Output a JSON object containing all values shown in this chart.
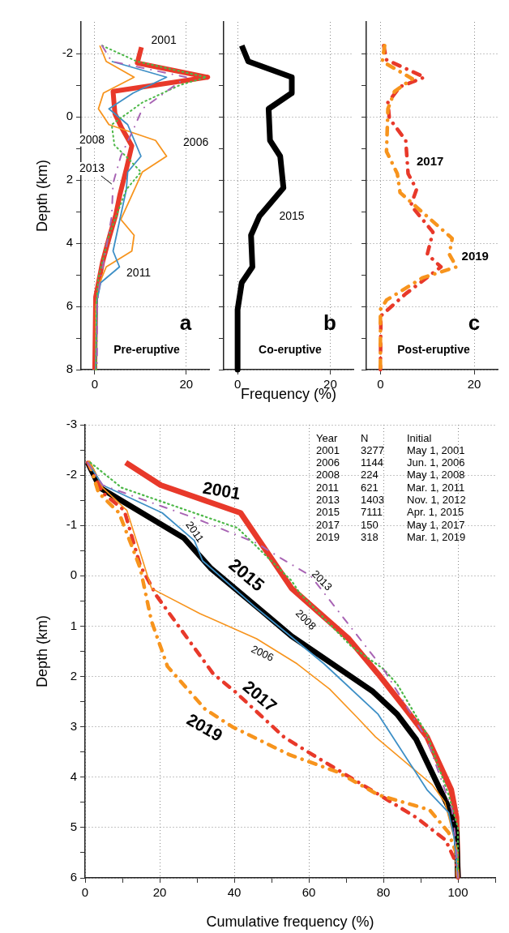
{
  "chart_data": [
    {
      "type": "line",
      "title": "a",
      "subtitle": "Pre-eruptive",
      "ylabel": "Depth (km)",
      "xlim": [
        -3,
        25
      ],
      "xticks": [
        0,
        20
      ],
      "ylim": [
        8,
        -3
      ],
      "yticks": [
        -2,
        {
          "value": -1,
          "label": null
        },
        0,
        {
          "value": 1,
          "label": null
        },
        2,
        {
          "value": 3,
          "label": null
        },
        4,
        {
          "value": 5,
          "label": null
        },
        6,
        {
          "value": 7,
          "label": null
        },
        8
      ],
      "grid": true,
      "marker": "none",
      "series": [
        {
          "name": "2001",
          "color": "#e8392a",
          "line_style": "solid",
          "x": [
            10.2,
            9.3,
            24.7,
            4,
            4.4,
            5.8,
            8.1,
            7,
            5.5,
            4.6,
            3.2,
            1.7,
            0.2,
            0
          ],
          "values": [
            -2.2,
            -1.7,
            -1.25,
            -0.8,
            -0.1,
            0.33,
            0.92,
            1.6,
            2.46,
            3.1,
            3.8,
            4.6,
            5.7,
            8
          ]
        },
        {
          "name": "2006",
          "color": "#f7941d",
          "line_style": "solid",
          "x": [
            1.1,
            2.5,
            8.6,
            1.9,
            0.8,
            3.1,
            13.3,
            15.7,
            10.4,
            5.7,
            8.6,
            8.1,
            2.5,
            1.1,
            0.2,
            0.2
          ],
          "values": [
            -2.25,
            -1.75,
            -1.25,
            -0.75,
            -0.25,
            0.25,
            0.75,
            1.25,
            1.75,
            3.25,
            3.75,
            4.25,
            4.75,
            5.25,
            6,
            8
          ]
        },
        {
          "name": "2011",
          "color": "#3d8fc6",
          "line_style": "solid",
          "x": [
            3.7,
            15.7,
            8.4,
            3.1,
            7.2,
            10.1,
            7.2,
            6.9,
            4,
            5.4,
            1.3,
            0.5,
            0.2
          ],
          "values": [
            -1.75,
            -1.25,
            -0.75,
            -0.25,
            0.25,
            1.25,
            1.75,
            2.3,
            4.25,
            4.75,
            5.25,
            5.8,
            8
          ]
        },
        {
          "name": "2008",
          "color": "#4db848",
          "line_style": "dotted",
          "x": [
            1.6,
            9.2,
            24.4,
            18.6,
            10.4,
            3.7,
            4.3,
            7.5,
            10.1,
            6.9,
            3.1,
            0.8,
            0.3,
            0.3
          ],
          "values": [
            -2.25,
            -1.75,
            -1.25,
            -1,
            -0.45,
            0.25,
            0.9,
            1.35,
            1.75,
            2.3,
            3.75,
            5.1,
            6,
            8
          ]
        },
        {
          "name": "2013",
          "color": "#a864b4",
          "line_style": "dashed",
          "x": [
            1.6,
            3.7,
            20,
            10.4,
            8.6,
            5.7,
            4,
            3.7,
            2.2,
            1.1,
            0.5,
            0.5
          ],
          "values": [
            -2.25,
            -1.75,
            -1.25,
            -0.25,
            0.35,
            1.25,
            2.1,
            3.15,
            4.4,
            5.25,
            6,
            8
          ]
        }
      ]
    },
    {
      "type": "line",
      "title": "b",
      "subtitle": "Co-eruptive",
      "xlabel": "Frequency (%)",
      "xlim": [
        -3,
        25
      ],
      "xticks": [
        0,
        20
      ],
      "ylim": [
        8,
        -3
      ],
      "yticks": [
        -2,
        {
          "value": -1,
          "label": null
        },
        0,
        {
          "value": 1,
          "label": null
        },
        2,
        {
          "value": 3,
          "label": null
        },
        4,
        {
          "value": 5,
          "label": null
        },
        6,
        {
          "value": 7,
          "label": null
        },
        8
      ],
      "grid": true,
      "marker": "none",
      "tick_labels": "x",
      "series": [
        {
          "name": "2015",
          "color": "#000000",
          "line_style": "solid",
          "x": [
            0.9,
            2.3,
            11.7,
            11.7,
            6.7,
            7,
            9.2,
            9.9,
            4.7,
            2.9,
            3.2,
            0.9,
            0,
            0
          ],
          "values": [
            -2.25,
            -1.75,
            -1.25,
            -0.75,
            -0.25,
            0.75,
            1.25,
            2.25,
            3.15,
            3.75,
            4.75,
            5.25,
            6.1,
            8
          ]
        }
      ]
    },
    {
      "type": "line",
      "title": "c",
      "subtitle": "Post-eruptive",
      "xlim": [
        -3,
        25
      ],
      "xticks": [
        0,
        20
      ],
      "ylim": [
        8,
        -3
      ],
      "yticks": [
        -2,
        {
          "value": -1,
          "label": null
        },
        0,
        {
          "value": 1,
          "label": null
        },
        2,
        {
          "value": 3,
          "label": null
        },
        4,
        {
          "value": 5,
          "label": null
        },
        6,
        {
          "value": 7,
          "label": null
        },
        8
      ],
      "grid": true,
      "marker": "none",
      "tick_labels": "x",
      "series": [
        {
          "name": "2017",
          "color": "#e8392a",
          "line_style": "dashed",
          "x": [
            0.7,
            1.3,
            9.4,
            4.2,
            1.6,
            1.9,
            5.4,
            5.9,
            7.7,
            6.5,
            11.2,
            10,
            12.9,
            5.4,
            0.1,
            0
          ],
          "values": [
            -2.25,
            -1.8,
            -1.25,
            -0.95,
            -0.45,
            0.05,
            0.75,
            1.8,
            2.3,
            2.8,
            3.65,
            4.35,
            4.75,
            5.6,
            6.3,
            8
          ]
        },
        {
          "name": "2019",
          "color": "#f7941d",
          "line_style": "dashed",
          "x": [
            0.9,
            0.4,
            6.8,
            3,
            1.6,
            1.3,
            3.6,
            4.2,
            15.3,
            14.7,
            16.2,
            8.9,
            1.3,
            0,
            0
          ],
          "values": [
            -2.25,
            -1.75,
            -1.2,
            -0.8,
            -0.25,
            1.1,
            1.8,
            2.4,
            3.85,
            4.35,
            4.75,
            5.1,
            5.8,
            6.1,
            8
          ]
        }
      ]
    },
    {
      "type": "line",
      "xlabel": "Cumulative frequency (%)",
      "ylabel": "Depth (km)",
      "xlim": [
        0,
        110
      ],
      "xticks": [
        0,
        {
          "value": 10,
          "label": null
        },
        20,
        {
          "value": 30,
          "label": null
        },
        40,
        {
          "value": 50,
          "label": null
        },
        60,
        {
          "value": 70,
          "label": null
        },
        80,
        {
          "value": 90,
          "label": null
        },
        100,
        {
          "value": 110,
          "label": null
        }
      ],
      "ylim": [
        6,
        -3
      ],
      "yticks": [
        -3,
        {
          "value": -2.5,
          "label": null
        },
        -2,
        {
          "value": -1.5,
          "label": null
        },
        -1,
        {
          "value": -0.5,
          "label": null
        },
        0,
        {
          "value": 0.5,
          "label": null
        },
        1,
        {
          "value": 1.5,
          "label": null
        },
        2,
        {
          "value": 2.5,
          "label": null
        },
        3,
        {
          "value": 3.5,
          "label": null
        },
        4,
        {
          "value": 4.5,
          "label": null
        },
        5,
        {
          "value": 5.5,
          "label": null
        },
        6
      ],
      "grid": true,
      "marker": "none",
      "series": [
        {
          "name": "2006",
          "color": "#f7941d",
          "line_style": "solid",
          "x": [
            1.4,
            4.7,
            11.2,
            17.8,
            30.8,
            46,
            56.9,
            65.6,
            72.8,
            77.9,
            93.1,
            96.5,
            100,
            100
          ],
          "values": [
            -2.25,
            -1.75,
            -1.3,
            0.25,
            0.75,
            1.25,
            1.75,
            2.25,
            2.8,
            3.2,
            4.15,
            4.5,
            5.5,
            6
          ]
        },
        {
          "name": "2011",
          "color": "#3d8fc6",
          "line_style": "solid",
          "x": [
            0.7,
            4.7,
            20.7,
            29.3,
            31.5,
            45.3,
            64.1,
            78.6,
            91.7,
            97.5,
            99,
            100
          ],
          "values": [
            -2.25,
            -1.8,
            -1.25,
            -0.7,
            -0.3,
            0.6,
            1.75,
            2.75,
            4.25,
            4.7,
            5.2,
            6
          ]
        },
        {
          "name": "2001",
          "color": "#e8392a",
          "line_style": "solid",
          "x": [
            10.9,
            20.3,
            41.7,
            55.4,
            70.7,
            78.6,
            85,
            91.7,
            98.2,
            99.6,
            100
          ],
          "values": [
            -2.25,
            -1.8,
            -1.25,
            0.25,
            1.25,
            1.95,
            2.55,
            3.2,
            4.25,
            4.8,
            6
          ]
        },
        {
          "name": "2008",
          "color": "#4db848",
          "line_style": "dotted",
          "x": [
            1.4,
            9.8,
            40.9,
            55.4,
            57.6,
            71.4,
            80,
            83.7,
            91.7,
            97.5,
            100,
            100
          ],
          "values": [
            -2.25,
            -1.75,
            -0.95,
            0.1,
            0.35,
            1.4,
            1.85,
            2.15,
            3.15,
            4.35,
            5,
            6
          ]
        },
        {
          "name": "2013",
          "color": "#a864b4",
          "line_style": "dashed",
          "x": [
            0.7,
            4.7,
            29.3,
            46,
            52.5,
            60.5,
            80,
            91.7,
            98.4,
            99.5,
            100
          ],
          "values": [
            -2.25,
            -1.8,
            -1.15,
            -0.65,
            -0.35,
            0,
            1.85,
            3.25,
            4.65,
            5.3,
            6
          ]
        },
        {
          "name": "2015",
          "color": "#000000",
          "line_style": "solid",
          "x": [
            0.7,
            4,
            26.5,
            33.7,
            48.2,
            55.4,
            77.2,
            83.7,
            88.8,
            97.5,
            99.6,
            100
          ],
          "values": [
            -2.25,
            -1.75,
            -0.75,
            -0.15,
            0.75,
            1.2,
            2.3,
            2.75,
            3.25,
            4.6,
            5.1,
            6
          ]
        },
        {
          "name": "2017",
          "color": "#e8392a",
          "line_style": "dashed",
          "x": [
            0.7,
            4.7,
            10.5,
            14.8,
            19.2,
            34.4,
            40.2,
            53.3,
            59.8,
            80,
            88.8,
            96.7,
            99.5,
            100
          ],
          "values": [
            -2.25,
            -1.65,
            -1.3,
            -0.2,
            0.4,
            1.95,
            2.3,
            3.2,
            3.5,
            4.4,
            4.8,
            5.25,
            5.7,
            6
          ]
        },
        {
          "name": "2019",
          "color": "#f7941d",
          "line_style": "dashed",
          "x": [
            1.1,
            3.6,
            9.1,
            14.8,
            17.8,
            22.1,
            32.2,
            39.5,
            54.7,
            67.8,
            78.6,
            92.4,
            97.5,
            99.5,
            100
          ],
          "values": [
            -2.25,
            -1.65,
            -1.25,
            -0.15,
            0.9,
            1.8,
            2.65,
            3,
            3.55,
            3.9,
            4.35,
            4.65,
            5.1,
            5.5,
            6
          ]
        }
      ],
      "annotations": [
        "Year",
        "N",
        "Initial",
        "2001",
        "3277",
        "May 1, 2001",
        "2006",
        "1144",
        "Jun. 1, 2006",
        "2008",
        "224",
        "May 1, 2008",
        "2011",
        "621",
        "Mar. 1, 2011",
        "2013",
        "1403",
        "Nov. 1, 2012",
        "2015",
        "7111",
        "Apr. 1, 2015",
        "2017",
        "150",
        "May 1, 2017",
        "2019",
        "318",
        "Mar. 1, 2019"
      ]
    }
  ]
}
